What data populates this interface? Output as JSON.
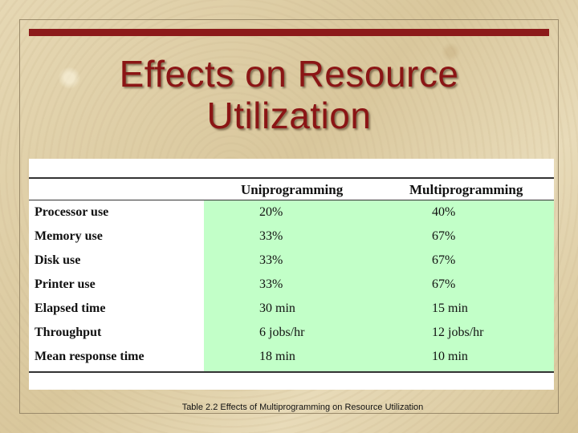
{
  "slide": {
    "title_line1": "Effects on Resource",
    "title_line2": "Utilization",
    "caption": "Table 2.2   Effects of Multiprogramming on Resource Utilization"
  },
  "table": {
    "columns": [
      "",
      "Uniprogramming",
      "Multiprogramming"
    ],
    "rows": [
      {
        "label": "Processor use",
        "uni": "20%",
        "multi": "40%"
      },
      {
        "label": "Memory use",
        "uni": "33%",
        "multi": "67%"
      },
      {
        "label": "Disk use",
        "uni": "33%",
        "multi": "67%"
      },
      {
        "label": "Printer use",
        "uni": "33%",
        "multi": "67%"
      },
      {
        "label": "Elapsed time",
        "uni": "30 min",
        "multi": "15 min"
      },
      {
        "label": "Throughput",
        "uni": "6 jobs/hr",
        "multi": "12 jobs/hr"
      },
      {
        "label": "Mean response time",
        "uni": "18 min",
        "multi": "10 min"
      }
    ]
  },
  "colors": {
    "accent": "#8c1a1a",
    "title": "#8b1515",
    "highlight": "#c2ffc8"
  }
}
